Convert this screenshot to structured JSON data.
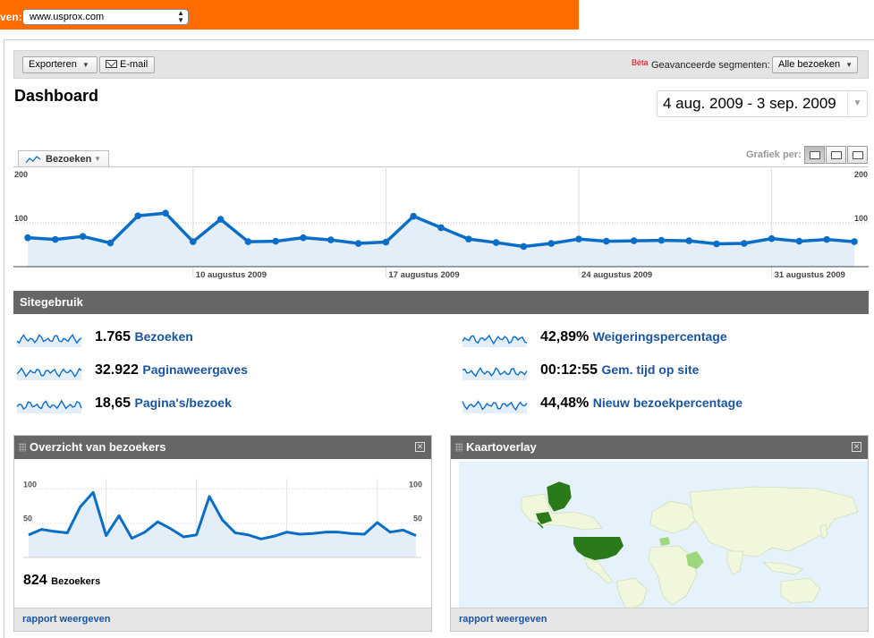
{
  "site_selector": {
    "label": "ven:",
    "value": "www.usprox.com"
  },
  "toolbar": {
    "export_label": "Exporteren",
    "email_label": "E-mail",
    "beta_label": "Bèta",
    "segments_label": "Geavanceerde segmenten:",
    "segments_value": "Alle bezoeken"
  },
  "page_title": "Dashboard",
  "date_range": "4 aug. 2009 - 3 sep. 2009",
  "metric_tab": "Bezoeken",
  "graph_per_label": "Grafiek per:",
  "colors": {
    "accent_orange": "#ff6b00",
    "line_blue": "#0a6ec8",
    "area_fill": "#e3eef8",
    "header_gray": "#666666",
    "link_blue": "#1a55a0",
    "map_country_dark": "#2a7a1a",
    "map_country_light": "#9fd680"
  },
  "chart_data": [
    {
      "type": "area",
      "series": [
        {
          "values": [
            66,
            62,
            69,
            54,
            116,
            122,
            57,
            108,
            57,
            58,
            66,
            61,
            53,
            56,
            115,
            89,
            63,
            55,
            46,
            53,
            63,
            58,
            59,
            60,
            59,
            52,
            53,
            64,
            58,
            62,
            57
          ]
        }
      ],
      "ylim": [
        0,
        200
      ],
      "y_ticks": [
        "100",
        "200"
      ],
      "x_tick_labels": [
        "10 augustus 2009",
        "17 augustus 2009",
        "24 augustus 2009",
        "31 augustus 2009"
      ],
      "x_tick_positions": [
        6,
        13,
        20,
        27
      ],
      "grid": true
    },
    {
      "type": "area",
      "series": [
        {
          "values": [
            33,
            41,
            38,
            36,
            74,
            95,
            32,
            61,
            28,
            37,
            52,
            42,
            30,
            33,
            89,
            55,
            36,
            33,
            27,
            31,
            37,
            34,
            35,
            37,
            37,
            35,
            34,
            51,
            37,
            40,
            32
          ]
        }
      ],
      "ylim": [
        0,
        115
      ],
      "y_ticks": [
        "50",
        "100"
      ],
      "grid": true
    }
  ],
  "site_usage": {
    "title": "Sitegebruik",
    "stats": [
      {
        "value": "1.765",
        "label": "Bezoeken"
      },
      {
        "value": "32.922",
        "label": "Paginaweergaves"
      },
      {
        "value": "18,65",
        "label": "Pagina's/bezoek"
      },
      {
        "value": "42,89%",
        "label": "Weigeringspercentage"
      },
      {
        "value": "00:12:55",
        "label": "Gem. tijd op site"
      },
      {
        "value": "44,48%",
        "label": "Nieuw bezoekpercentage"
      }
    ]
  },
  "visitors_widget": {
    "title": "Overzicht van bezoekers",
    "count": "824",
    "count_label": "Bezoekers",
    "footer_link": "rapport weergeven"
  },
  "map_widget": {
    "title": "Kaartoverlay",
    "footer_link": "rapport weergeven"
  }
}
